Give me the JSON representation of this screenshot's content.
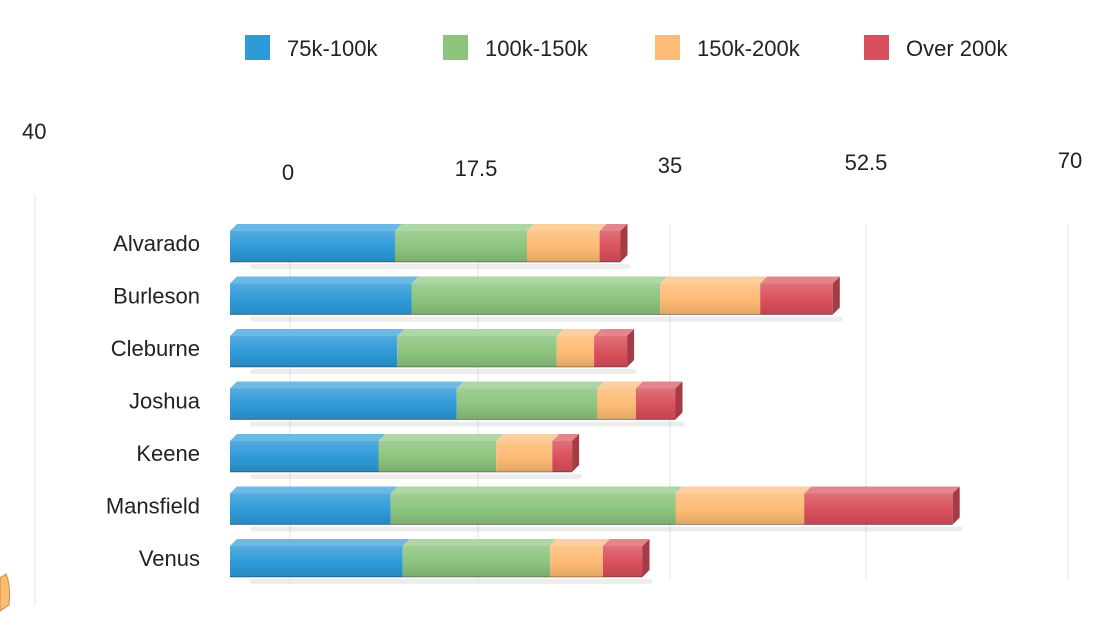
{
  "chart_data": {
    "type": "bar",
    "orientation": "horizontal",
    "stacked": true,
    "title": "",
    "xlabel": "",
    "ylabel": "",
    "xlim": [
      0,
      70
    ],
    "x_ticks": [
      "0",
      "17.5",
      "35",
      "52.5",
      "70"
    ],
    "grid": true,
    "legend_position": "top",
    "stray_label": "40",
    "categories": [
      "Alvarado",
      "Burleson",
      "Cleburne",
      "Joshua",
      "Keene",
      "Mansfield",
      "Venus"
    ],
    "series": [
      {
        "name": "75k-100k",
        "color": "#2e9ad8",
        "values": [
          15,
          16.5,
          15.2,
          20.6,
          13.5,
          14.6,
          15.7
        ]
      },
      {
        "name": "100k-150k",
        "color": "#8cc47e",
        "values": [
          12,
          22.6,
          14.5,
          12.8,
          10.7,
          25.9,
          13.4
        ]
      },
      {
        "name": "150k-200k",
        "color": "#fdbb74",
        "values": [
          6.6,
          9.1,
          3.4,
          3.5,
          5.1,
          11.7,
          4.8
        ]
      },
      {
        "name": "Over 200k",
        "color": "#d9505c",
        "values": [
          1.9,
          6.6,
          3,
          3.6,
          1.8,
          13.5,
          3.6
        ]
      }
    ]
  }
}
